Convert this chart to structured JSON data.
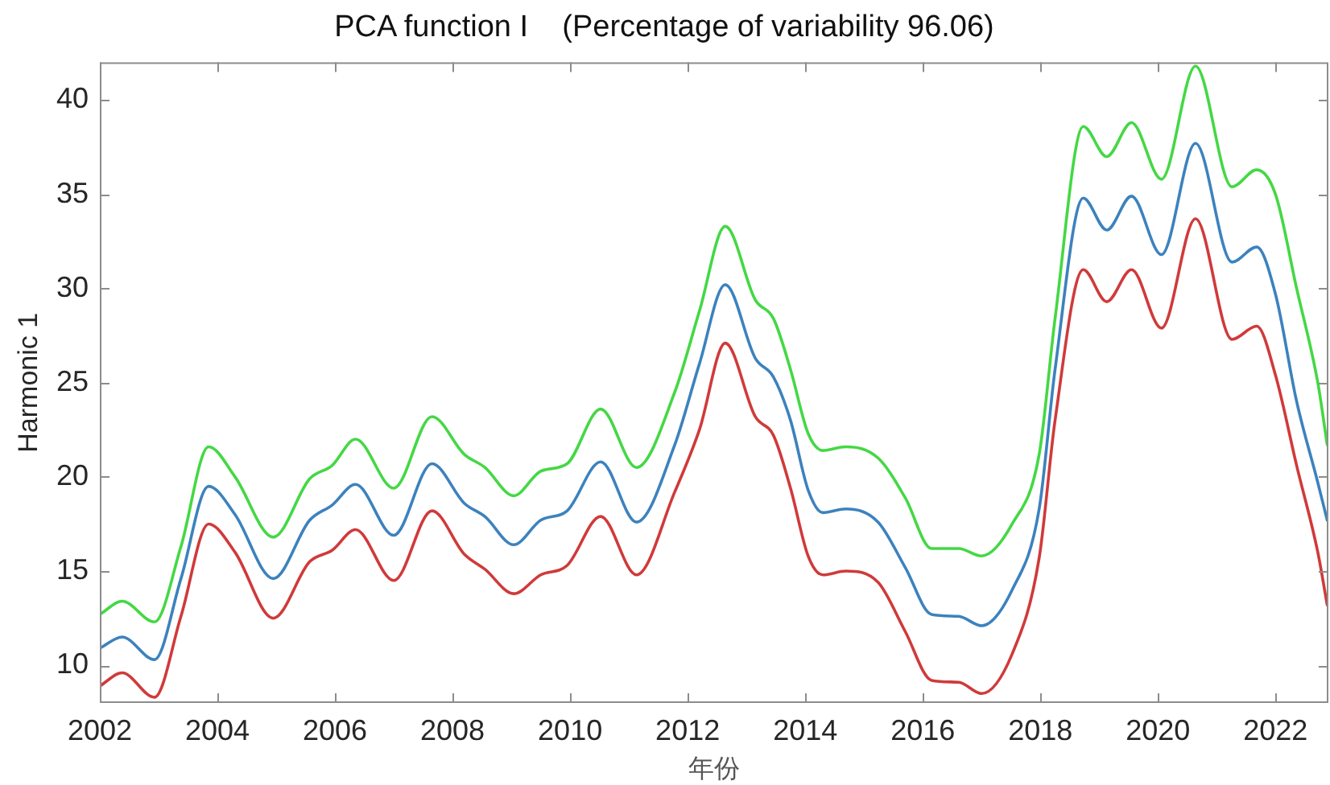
{
  "chart_data": {
    "type": "line",
    "title": "PCA function I    (Percentage of variability 96.06)",
    "xlabel": "年份",
    "ylabel": "Harmonic 1",
    "x": [
      2002.0,
      2002.38,
      2002.93,
      2003.38,
      2003.85,
      2004.3,
      2004.95,
      2005.57,
      2005.95,
      2006.35,
      2007.0,
      2007.65,
      2008.2,
      2008.55,
      2009.04,
      2009.5,
      2009.95,
      2010.52,
      2011.13,
      2011.78,
      2012.2,
      2012.64,
      2013.15,
      2013.46,
      2013.75,
      2014.05,
      2014.3,
      2014.69,
      2015.24,
      2015.7,
      2016.15,
      2016.61,
      2017.0,
      2017.52,
      2017.98,
      2018.25,
      2018.73,
      2019.13,
      2019.55,
      2020.06,
      2020.64,
      2021.26,
      2021.68,
      2022.0,
      2022.36,
      2022.72,
      2022.88
    ],
    "series": [
      {
        "color": "#44d844",
        "values": [
          12.7,
          13.4,
          12.3,
          16.3,
          21.6,
          20.0,
          16.8,
          19.9,
          20.6,
          22.0,
          19.4,
          23.2,
          21.2,
          20.5,
          19.0,
          20.3,
          20.7,
          23.6,
          20.5,
          24.5,
          28.8,
          33.3,
          29.4,
          28.4,
          25.7,
          22.3,
          21.4,
          21.6,
          21.0,
          18.9,
          16.2,
          16.2,
          15.8,
          17.5,
          21.2,
          28.4,
          38.6,
          37.0,
          38.8,
          35.8,
          41.8,
          35.4,
          36.3,
          35.0,
          30.0,
          25.0,
          21.7
        ]
      },
      {
        "color": "#3c82be",
        "values": [
          10.9,
          11.5,
          10.3,
          14.6,
          19.5,
          18.0,
          14.6,
          17.7,
          18.5,
          19.6,
          16.9,
          20.7,
          18.6,
          17.9,
          16.4,
          17.7,
          18.2,
          20.8,
          17.6,
          21.7,
          26.0,
          30.2,
          26.3,
          25.3,
          23.0,
          19.3,
          18.1,
          18.3,
          17.6,
          15.2,
          12.7,
          12.6,
          12.1,
          14.0,
          18.3,
          25.7,
          34.8,
          33.1,
          34.9,
          31.8,
          37.7,
          31.4,
          32.2,
          29.7,
          24.0,
          19.7,
          17.7
        ]
      },
      {
        "color": "#d03a3a",
        "values": [
          8.9,
          9.6,
          8.3,
          12.6,
          17.5,
          16.0,
          12.5,
          15.5,
          16.1,
          17.2,
          14.5,
          18.2,
          15.9,
          15.1,
          13.8,
          14.8,
          15.3,
          17.9,
          14.8,
          19.2,
          22.5,
          27.1,
          23.2,
          22.2,
          19.4,
          15.8,
          14.8,
          15.0,
          14.4,
          11.8,
          9.2,
          9.1,
          8.5,
          10.6,
          15.7,
          23.0,
          31.0,
          29.3,
          31.0,
          27.9,
          33.7,
          27.3,
          28.0,
          25.4,
          20.6,
          16.0,
          13.2
        ]
      }
    ],
    "xlim": [
      2002,
      2022.9
    ],
    "xticks": [
      2002,
      2004,
      2006,
      2008,
      2010,
      2012,
      2014,
      2016,
      2018,
      2020,
      2022
    ],
    "ylim": [
      8,
      42
    ],
    "yticks": [
      10,
      15,
      20,
      25,
      30,
      35,
      40
    ],
    "line_style": "solid"
  }
}
